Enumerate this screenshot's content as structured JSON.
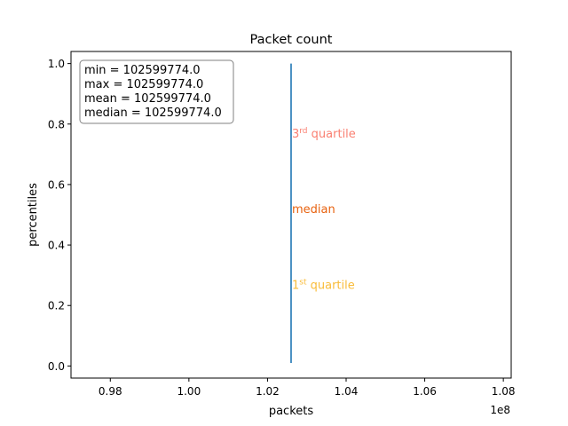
{
  "chart_data": {
    "type": "line",
    "title": "Packet count",
    "xlabel": "packets",
    "ylabel": "percentiles",
    "x_offset_label": "1e8",
    "xlim": [
      0.97,
      1.082
    ],
    "ylim": [
      -0.04,
      1.04
    ],
    "x_scale_multiplier": 100000000,
    "x_ticks": [
      0.98,
      1.0,
      1.02,
      1.04,
      1.06,
      1.08
    ],
    "x_tick_labels": [
      "0.98",
      "1.00",
      "1.02",
      "1.04",
      "1.06",
      "1.08"
    ],
    "y_ticks": [
      0.0,
      0.2,
      0.4,
      0.6,
      0.8,
      1.0
    ],
    "y_tick_labels": [
      "0.0",
      "0.2",
      "0.4",
      "0.6",
      "0.8",
      "1.0"
    ],
    "grid": false,
    "series": [
      {
        "x": [
          1.02599774,
          1.02599774
        ],
        "y": [
          0.01,
          1.0
        ],
        "color": "#1f77b4"
      }
    ],
    "annotations": [
      {
        "base": "3",
        "sup": "rd",
        "rest": " quartile",
        "x": 1.02599774,
        "y": 0.77,
        "color": "#fa8072"
      },
      {
        "base": "median",
        "sup": "",
        "rest": "",
        "x": 1.02599774,
        "y": 0.52,
        "color": "#e8620f"
      },
      {
        "base": "1",
        "sup": "st",
        "rest": " quartile",
        "x": 1.02599774,
        "y": 0.27,
        "color": "#f9bc3a"
      }
    ],
    "stats_box": {
      "lines": [
        "min = 102599774.0",
        "max = 102599774.0",
        "mean = 102599774.0",
        "median = 102599774.0"
      ],
      "placement": "top-left"
    }
  }
}
